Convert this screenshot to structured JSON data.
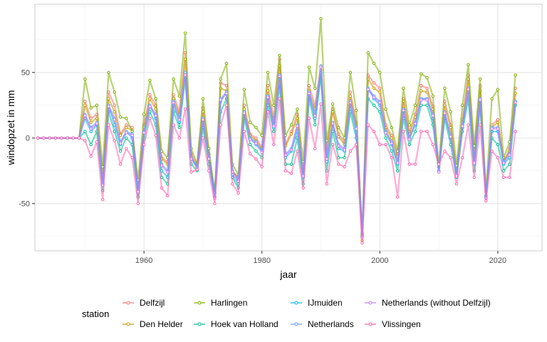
{
  "chart_data": {
    "type": "line",
    "xlabel": "jaar",
    "ylabel": "windopzet in mm",
    "xlim": [
      1941.5,
      2027.5
    ],
    "ylim": [
      -86,
      102
    ],
    "x_ticks": [
      1960,
      1980,
      2000,
      2020
    ],
    "y_ticks": [
      -50,
      0,
      50
    ],
    "grid": true,
    "legend": {
      "title": "station",
      "placement": "bottom"
    },
    "x": [
      1942,
      1943,
      1944,
      1945,
      1946,
      1947,
      1948,
      1949,
      1950,
      1951,
      1952,
      1953,
      1954,
      1955,
      1956,
      1957,
      1958,
      1959,
      1960,
      1961,
      1962,
      1963,
      1964,
      1965,
      1966,
      1967,
      1968,
      1969,
      1970,
      1971,
      1972,
      1973,
      1974,
      1975,
      1976,
      1977,
      1978,
      1979,
      1980,
      1981,
      1982,
      1983,
      1984,
      1985,
      1986,
      1987,
      1988,
      1989,
      1990,
      1991,
      1992,
      1993,
      1994,
      1995,
      1996,
      1997,
      1998,
      1999,
      2000,
      2001,
      2002,
      2003,
      2004,
      2005,
      2006,
      2007,
      2008,
      2009,
      2010,
      2011,
      2012,
      2013,
      2014,
      2015,
      2016,
      2017,
      2018,
      2019,
      2020,
      2021,
      2022,
      2023
    ],
    "series": [
      {
        "name": "Delfzijl",
        "color": "#F8766D",
        "values": [
          0,
          0,
          0,
          0,
          0,
          0,
          0,
          0,
          28,
          15,
          18,
          -30,
          35,
          25,
          3,
          10,
          8,
          -40,
          10,
          33,
          25,
          -15,
          -18,
          33,
          20,
          65,
          -12,
          -20,
          23,
          -12,
          -45,
          42,
          40,
          -25,
          -32,
          25,
          3,
          0,
          -7,
          40,
          15,
          60,
          -5,
          5,
          18,
          -28,
          40,
          25,
          55,
          -8,
          22,
          3,
          -3,
          35,
          12,
          -73,
          48,
          42,
          38,
          10,
          2,
          -12,
          30,
          5,
          18,
          40,
          38,
          24,
          -25,
          28,
          10,
          -25,
          14,
          48,
          -12,
          40,
          -46,
          10,
          14,
          -18,
          -8,
          38
        ]
      },
      {
        "name": "Den Helder",
        "color": "#C49A00",
        "values": [
          0,
          0,
          0,
          0,
          0,
          0,
          0,
          0,
          25,
          12,
          15,
          -28,
          30,
          20,
          2,
          8,
          6,
          -38,
          8,
          30,
          22,
          -16,
          -20,
          30,
          18,
          60,
          -14,
          -22,
          20,
          -12,
          -42,
          38,
          36,
          -25,
          -30,
          22,
          2,
          -2,
          -8,
          36,
          12,
          55,
          -6,
          3,
          15,
          -28,
          36,
          22,
          52,
          -10,
          20,
          1,
          -5,
          32,
          10,
          -78,
          45,
          38,
          35,
          8,
          0,
          -14,
          28,
          3,
          16,
          36,
          35,
          22,
          -26,
          25,
          8,
          -26,
          12,
          45,
          -14,
          36,
          -44,
          8,
          12,
          -18,
          -10,
          34
        ]
      },
      {
        "name": "Harlingen",
        "color": "#7CAE00",
        "values": [
          0,
          0,
          0,
          0,
          0,
          0,
          0,
          0,
          45,
          23,
          25,
          -22,
          50,
          35,
          16,
          15,
          5,
          -32,
          18,
          44,
          30,
          -10,
          -15,
          45,
          32,
          80,
          -8,
          -20,
          30,
          -8,
          -42,
          45,
          57,
          -20,
          -28,
          37,
          12,
          8,
          2,
          50,
          25,
          63,
          2,
          10,
          22,
          -18,
          54,
          38,
          91,
          -2,
          26,
          8,
          0,
          50,
          21,
          -74,
          65,
          57,
          50,
          22,
          8,
          -10,
          38,
          10,
          25,
          49,
          46,
          32,
          -22,
          38,
          20,
          -21,
          25,
          56,
          -6,
          45,
          -41,
          30,
          37,
          -15,
          -3,
          48
        ]
      },
      {
        "name": "Hoek van Holland",
        "color": "#00C08B",
        "values": [
          0,
          0,
          0,
          0,
          0,
          0,
          0,
          0,
          5,
          -5,
          5,
          -40,
          20,
          5,
          -10,
          0,
          -5,
          -45,
          0,
          20,
          10,
          -30,
          -35,
          20,
          8,
          45,
          -20,
          -25,
          8,
          -20,
          -45,
          20,
          30,
          -30,
          -38,
          15,
          -5,
          -10,
          -15,
          25,
          5,
          40,
          -20,
          -20,
          0,
          -35,
          30,
          10,
          48,
          -25,
          5,
          -15,
          -15,
          20,
          0,
          -75,
          30,
          25,
          20,
          0,
          -10,
          -25,
          15,
          -5,
          5,
          25,
          25,
          10,
          -25,
          15,
          -5,
          -30,
          5,
          30,
          -25,
          25,
          -45,
          0,
          -5,
          -25,
          -20,
          25
        ]
      },
      {
        "name": "IJmuiden",
        "color": "#00B4EF",
        "values": [
          0,
          0,
          0,
          0,
          0,
          0,
          0,
          0,
          15,
          5,
          10,
          -35,
          25,
          10,
          -5,
          5,
          0,
          -42,
          5,
          25,
          15,
          -25,
          -30,
          25,
          12,
          50,
          -15,
          -22,
          12,
          -15,
          -42,
          28,
          35,
          -28,
          -35,
          18,
          0,
          -5,
          -10,
          30,
          8,
          45,
          -15,
          -10,
          5,
          -30,
          33,
          15,
          50,
          -18,
          10,
          -8,
          -10,
          25,
          5,
          -72,
          38,
          30,
          25,
          5,
          -5,
          -20,
          20,
          0,
          10,
          30,
          30,
          15,
          -25,
          18,
          0,
          -28,
          8,
          35,
          -20,
          28,
          -44,
          5,
          5,
          -20,
          -15,
          28
        ]
      },
      {
        "name": "Netherlands",
        "color": "#619CFF",
        "values": [
          0,
          0,
          0,
          0,
          0,
          0,
          0,
          0,
          18,
          8,
          12,
          -35,
          25,
          15,
          -3,
          5,
          3,
          -40,
          5,
          25,
          18,
          -20,
          -25,
          28,
          15,
          50,
          -15,
          -22,
          15,
          -15,
          -45,
          30,
          35,
          -25,
          -32,
          20,
          0,
          -3,
          -10,
          32,
          10,
          48,
          -12,
          -8,
          10,
          -28,
          35,
          18,
          55,
          -15,
          12,
          -5,
          -8,
          28,
          8,
          -75,
          38,
          32,
          28,
          5,
          -3,
          -18,
          22,
          0,
          12,
          30,
          30,
          18,
          -25,
          20,
          2,
          -28,
          10,
          38,
          -18,
          30,
          -45,
          8,
          8,
          -18,
          -12,
          28
        ]
      },
      {
        "name": "Netherlands (without Delfzijl)",
        "color": "#C77CFF",
        "values": [
          0,
          0,
          0,
          0,
          0,
          0,
          0,
          0,
          17,
          7,
          11,
          -36,
          24,
          14,
          -4,
          4,
          2,
          -41,
          4,
          24,
          17,
          -21,
          -26,
          27,
          14,
          48,
          -16,
          -23,
          14,
          -16,
          -46,
          29,
          34,
          -26,
          -33,
          19,
          -1,
          -4,
          -11,
          31,
          9,
          47,
          -13,
          -9,
          9,
          -29,
          34,
          17,
          54,
          -16,
          11,
          -6,
          -9,
          27,
          7,
          -76,
          37,
          31,
          27,
          4,
          -4,
          -19,
          21,
          -1,
          11,
          29,
          29,
          17,
          -26,
          19,
          1,
          -29,
          9,
          37,
          -19,
          29,
          -46,
          7,
          7,
          -19,
          -13,
          27
        ]
      },
      {
        "name": "Vlissingen",
        "color": "#FF64B0",
        "values": [
          0,
          0,
          0,
          0,
          0,
          0,
          0,
          0,
          -2,
          -14,
          -3,
          -47,
          10,
          -2,
          -20,
          -8,
          -15,
          -50,
          -5,
          15,
          2,
          -38,
          -44,
          10,
          0,
          22,
          -26,
          -24,
          0,
          -25,
          -50,
          10,
          25,
          -35,
          -42,
          5,
          -12,
          -16,
          -22,
          20,
          -5,
          30,
          -25,
          -27,
          -10,
          -38,
          15,
          -8,
          26,
          -35,
          -5,
          -20,
          -22,
          -10,
          -5,
          -80,
          10,
          5,
          -5,
          -5,
          -15,
          -45,
          5,
          -20,
          -20,
          5,
          5,
          -5,
          -20,
          -10,
          -15,
          -35,
          -15,
          10,
          -30,
          10,
          -48,
          -10,
          -15,
          -30,
          -30,
          5
        ]
      }
    ]
  }
}
